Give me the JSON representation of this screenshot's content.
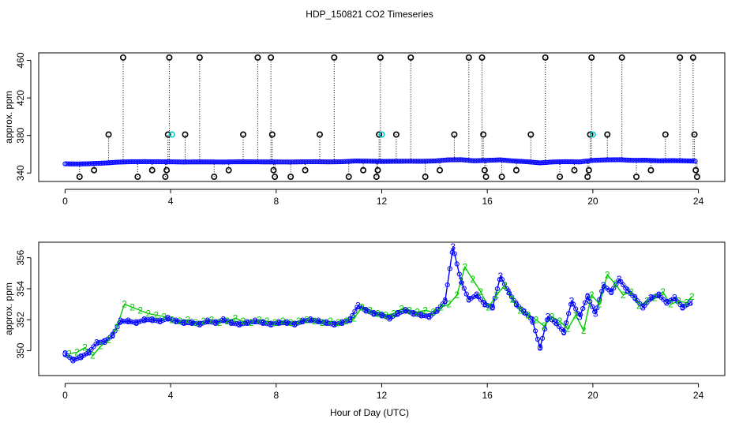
{
  "figure": {
    "title": "HDP_150821  CO2 Timeseries",
    "xlabel": "Hour of Day (UTC)"
  },
  "chart_data": [
    {
      "type": "scatter",
      "panel": "top",
      "ylabel": "approx. ppm",
      "xlim": [
        -1,
        25
      ],
      "ylim": [
        331,
        468
      ],
      "x_ticks": [
        0,
        4,
        8,
        12,
        16,
        20,
        24
      ],
      "x_tick_labels": [
        "0",
        "4",
        "8",
        "12",
        "16",
        "20",
        "24"
      ],
      "y_ticks": [
        340,
        380,
        420,
        460
      ],
      "y_tick_labels": [
        "340",
        "380",
        "420",
        "460"
      ],
      "baseline_series": {
        "name": "CO2 (blue circles)",
        "color": "#0000ff",
        "highlight_color": "#00cccc",
        "marker": "circle",
        "x": [
          0.0,
          0.5,
          1.0,
          1.5,
          2.0,
          2.5,
          3.0,
          3.5,
          4.0,
          4.5,
          5.0,
          5.5,
          6.0,
          6.5,
          7.0,
          7.5,
          8.0,
          8.5,
          9.0,
          9.5,
          10.0,
          10.5,
          11.0,
          11.5,
          12.0,
          12.5,
          13.0,
          13.5,
          14.0,
          14.5,
          15.0,
          15.5,
          16.0,
          16.5,
          17.0,
          17.5,
          18.0,
          18.5,
          19.0,
          19.5,
          20.0,
          20.5,
          21.0,
          21.5,
          22.0,
          22.5,
          23.0,
          23.5,
          23.9
        ],
        "y": [
          349.8,
          349.6,
          350.0,
          350.6,
          351.6,
          352.0,
          352.1,
          352.0,
          351.9,
          351.7,
          351.8,
          351.8,
          351.7,
          351.9,
          351.9,
          351.8,
          351.8,
          351.7,
          351.9,
          352.0,
          351.8,
          352.0,
          352.8,
          352.6,
          352.3,
          352.5,
          352.6,
          352.5,
          352.8,
          354.0,
          354.2,
          353.0,
          353.5,
          354.0,
          352.8,
          352.0,
          350.8,
          351.8,
          352.0,
          351.8,
          353.5,
          354.0,
          354.2,
          353.5,
          353.6,
          353.0,
          353.2,
          353.0,
          352.6
        ]
      },
      "flag_levels": {
        "values": [
          336,
          343,
          381,
          463
        ],
        "color": "#000000",
        "highlight_color": "#00cccc",
        "marker": "circle",
        "note": "flagged values drawn at fixed levels with dotted drop lines"
      },
      "flag_points": [
        {
          "x": 0.55,
          "level": 336
        },
        {
          "x": 1.1,
          "level": 343
        },
        {
          "x": 1.65,
          "level": 381
        },
        {
          "x": 2.2,
          "level": 463
        },
        {
          "x": 2.75,
          "level": 336
        },
        {
          "x": 3.3,
          "level": 343
        },
        {
          "x": 3.8,
          "level": 336
        },
        {
          "x": 3.85,
          "level": 343
        },
        {
          "x": 3.9,
          "level": 381
        },
        {
          "x": 3.95,
          "level": 463
        },
        {
          "x": 4.55,
          "level": 381
        },
        {
          "x": 5.1,
          "level": 463
        },
        {
          "x": 5.65,
          "level": 336
        },
        {
          "x": 6.2,
          "level": 343
        },
        {
          "x": 6.75,
          "level": 381
        },
        {
          "x": 7.3,
          "level": 463
        },
        {
          "x": 7.8,
          "level": 463
        },
        {
          "x": 7.85,
          "level": 381
        },
        {
          "x": 7.9,
          "level": 343
        },
        {
          "x": 7.95,
          "level": 336
        },
        {
          "x": 8.55,
          "level": 336
        },
        {
          "x": 9.1,
          "level": 343
        },
        {
          "x": 9.65,
          "level": 381
        },
        {
          "x": 10.2,
          "level": 463
        },
        {
          "x": 10.75,
          "level": 336
        },
        {
          "x": 11.3,
          "level": 343
        },
        {
          "x": 11.8,
          "level": 336
        },
        {
          "x": 11.85,
          "level": 343
        },
        {
          "x": 11.9,
          "level": 381
        },
        {
          "x": 11.95,
          "level": 463
        },
        {
          "x": 12.55,
          "level": 381
        },
        {
          "x": 13.1,
          "level": 463
        },
        {
          "x": 13.65,
          "level": 336
        },
        {
          "x": 14.2,
          "level": 343
        },
        {
          "x": 14.75,
          "level": 381
        },
        {
          "x": 15.3,
          "level": 463
        },
        {
          "x": 15.8,
          "level": 463
        },
        {
          "x": 15.85,
          "level": 381
        },
        {
          "x": 15.9,
          "level": 343
        },
        {
          "x": 15.95,
          "level": 336
        },
        {
          "x": 16.55,
          "level": 336
        },
        {
          "x": 17.1,
          "level": 343
        },
        {
          "x": 17.65,
          "level": 381
        },
        {
          "x": 18.2,
          "level": 463
        },
        {
          "x": 18.75,
          "level": 336
        },
        {
          "x": 19.3,
          "level": 343
        },
        {
          "x": 19.8,
          "level": 336
        },
        {
          "x": 19.85,
          "level": 343
        },
        {
          "x": 19.9,
          "level": 381
        },
        {
          "x": 19.95,
          "level": 463
        },
        {
          "x": 20.55,
          "level": 381
        },
        {
          "x": 21.1,
          "level": 463
        },
        {
          "x": 21.65,
          "level": 336
        },
        {
          "x": 22.2,
          "level": 343
        },
        {
          "x": 22.75,
          "level": 381
        },
        {
          "x": 23.3,
          "level": 463
        },
        {
          "x": 23.8,
          "level": 463
        },
        {
          "x": 23.85,
          "level": 381
        },
        {
          "x": 23.9,
          "level": 343
        },
        {
          "x": 23.95,
          "level": 336
        }
      ],
      "highlight_points": [
        {
          "x": 4.05,
          "level": 381
        },
        {
          "x": 12.0,
          "level": 381
        },
        {
          "x": 20.0,
          "level": 381
        }
      ]
    },
    {
      "type": "line",
      "panel": "bottom",
      "ylabel": "approx. ppm",
      "xlim": [
        -1,
        25
      ],
      "ylim": [
        348.4,
        357.0
      ],
      "x_ticks": [
        0,
        4,
        8,
        12,
        16,
        20,
        24
      ],
      "x_tick_labels": [
        "0",
        "4",
        "8",
        "12",
        "16",
        "20",
        "24"
      ],
      "y_ticks": [
        350,
        352,
        354,
        356
      ],
      "y_tick_labels": [
        "350",
        "352",
        "354",
        "356"
      ],
      "series": [
        {
          "name": "3",
          "marker_label": "3",
          "color": "#0000ff",
          "x": [
            0.0,
            0.3,
            0.6,
            0.9,
            1.2,
            1.5,
            1.8,
            2.1,
            2.4,
            2.7,
            3.0,
            3.3,
            3.6,
            3.9,
            4.2,
            4.5,
            4.8,
            5.1,
            5.4,
            5.7,
            6.0,
            6.3,
            6.6,
            6.9,
            7.2,
            7.5,
            7.8,
            8.1,
            8.4,
            8.7,
            9.0,
            9.3,
            9.6,
            9.9,
            10.2,
            10.5,
            10.8,
            11.1,
            11.4,
            11.7,
            12.0,
            12.3,
            12.6,
            12.9,
            13.2,
            13.5,
            13.8,
            14.1,
            14.4,
            14.7,
            15.0,
            15.3,
            15.6,
            15.9,
            16.2,
            16.5,
            16.8,
            17.1,
            17.4,
            17.7,
            18.0,
            18.3,
            18.6,
            18.9,
            19.2,
            19.5,
            19.8,
            20.1,
            20.4,
            20.7,
            21.0,
            21.3,
            21.6,
            21.9,
            22.2,
            22.5,
            22.8,
            23.1,
            23.4,
            23.7
          ],
          "y": [
            349.8,
            349.4,
            349.6,
            349.9,
            350.5,
            350.6,
            351.0,
            351.9,
            351.9,
            351.8,
            352.0,
            352.0,
            351.9,
            352.1,
            351.9,
            351.8,
            351.8,
            351.7,
            351.9,
            351.8,
            352.0,
            351.8,
            351.7,
            351.8,
            351.9,
            351.8,
            351.7,
            351.8,
            351.8,
            351.7,
            351.9,
            352.0,
            351.9,
            351.8,
            351.7,
            351.8,
            352.0,
            352.9,
            352.6,
            352.4,
            352.3,
            352.1,
            352.4,
            352.6,
            352.4,
            352.3,
            352.2,
            352.6,
            353.2,
            356.7,
            354.5,
            353.3,
            353.6,
            353.0,
            352.8,
            354.8,
            353.8,
            353.0,
            352.5,
            352.0,
            350.2,
            352.2,
            351.8,
            351.2,
            353.2,
            352.2,
            353.5,
            352.4,
            354.2,
            353.8,
            354.6,
            353.9,
            353.4,
            352.8,
            353.4,
            353.6,
            353.1,
            353.4,
            352.8,
            353.1
          ]
        },
        {
          "name": "2",
          "marker_label": "2",
          "color": "#00cc00",
          "x": [
            0.15,
            0.45,
            0.75,
            1.05,
            1.35,
            1.65,
            1.95,
            2.25,
            2.55,
            2.85,
            3.15,
            3.45,
            3.75,
            4.05,
            4.35,
            4.65,
            4.95,
            5.25,
            5.55,
            5.85,
            6.15,
            6.45,
            6.75,
            7.05,
            7.35,
            7.65,
            7.95,
            8.25,
            8.55,
            8.85,
            9.15,
            9.45,
            9.75,
            10.05,
            10.35,
            10.65,
            10.95,
            11.25,
            11.55,
            11.85,
            12.15,
            12.45,
            12.75,
            13.05,
            13.35,
            13.65,
            13.95,
            14.25,
            14.55,
            14.85,
            15.15,
            15.45,
            15.75,
            16.05,
            16.35,
            16.65,
            16.95,
            17.25,
            17.55,
            17.85,
            18.15,
            18.45,
            18.75,
            19.05,
            19.35,
            19.65,
            19.95,
            20.25,
            20.55,
            20.85,
            21.15,
            21.45,
            21.75,
            22.05,
            22.35,
            22.65,
            22.95,
            23.25,
            23.55,
            23.75
          ],
          "y": [
            349.8,
            349.9,
            350.2,
            349.7,
            350.3,
            350.7,
            351.5,
            353.0,
            352.8,
            352.6,
            352.4,
            352.3,
            352.2,
            352.0,
            351.9,
            352.0,
            351.8,
            351.9,
            352.0,
            351.8,
            351.9,
            352.1,
            351.9,
            351.8,
            352.0,
            351.9,
            351.8,
            351.9,
            351.8,
            351.9,
            352.0,
            351.9,
            351.8,
            351.9,
            351.8,
            351.9,
            352.1,
            352.8,
            352.6,
            352.4,
            352.3,
            352.4,
            352.7,
            352.6,
            352.5,
            352.6,
            352.5,
            352.8,
            353.0,
            353.6,
            355.4,
            354.6,
            353.8,
            352.8,
            353.6,
            354.2,
            353.3,
            352.6,
            352.3,
            352.0,
            351.6,
            352.2,
            351.9,
            351.4,
            352.3,
            351.3,
            353.6,
            353.0,
            354.9,
            354.3,
            353.6,
            353.8,
            352.9,
            353.2,
            353.4,
            353.8,
            353.0,
            353.2,
            353.1,
            353.5
          ]
        }
      ]
    }
  ]
}
